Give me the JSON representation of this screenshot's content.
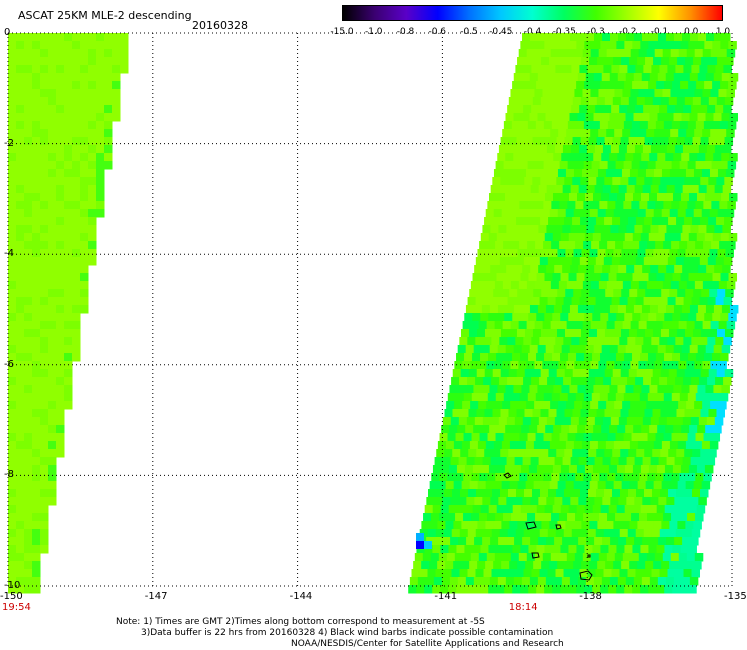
{
  "header": {
    "title": "ASCAT 25KM MLE-2 descending",
    "date": "20160328"
  },
  "colorbar": {
    "labels": [
      "-15.0",
      "-1.0",
      "-0.8",
      "-0.6",
      "-0.5",
      "-0.45",
      "-0.4",
      "-0.35",
      "-0.3",
      "-0.2",
      "-0.1",
      "0.0",
      "1.0"
    ],
    "colors": [
      "#000000",
      "#3a0070",
      "#5a00c8",
      "#0000ff",
      "#0070ff",
      "#00c8ff",
      "#00ffd0",
      "#00ff60",
      "#40ff00",
      "#a0ff00",
      "#ffff00",
      "#ff9000",
      "#ff0000"
    ]
  },
  "map": {
    "x_ticks": [
      "-150",
      "-147",
      "-144",
      "-141",
      "-138",
      "-135"
    ],
    "y_ticks": [
      "0",
      "-2",
      "-4",
      "-6",
      "-8",
      "-10"
    ],
    "lon_range": [
      -150,
      -135
    ],
    "lat_range": [
      -10,
      0
    ],
    "time_labels": [
      {
        "text": "19:54",
        "lon": -150
      },
      {
        "text": "18:14",
        "lon": -139.5
      }
    ]
  },
  "footer": {
    "line1": "Note: 1) Times are GMT 2)Times along bottom correspond to measurement at -5S",
    "line2": "3)Data buffer is 22 hrs from 20160328 4) Black wind barbs indicate possible contamination",
    "line3": "NOAA/NESDIS/Center for Satellite Applications and Research"
  }
}
